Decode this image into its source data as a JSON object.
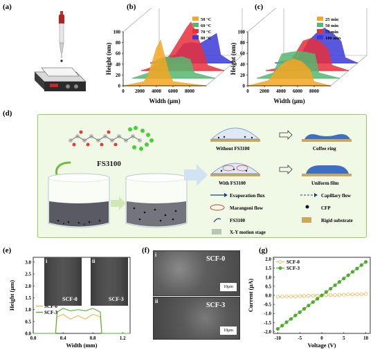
{
  "panels": {
    "a": {
      "label": "(a)"
    },
    "b": {
      "label": "(b)"
    },
    "c": {
      "label": "(c)"
    },
    "d": {
      "label": "(d)"
    },
    "e": {
      "label": "(e)"
    },
    "f": {
      "label": "(f)"
    },
    "g": {
      "label": "(g)"
    }
  },
  "panel_d": {
    "molecule_label": "FS3100",
    "without_label": "Without FS3100",
    "with_label": "With FS3100",
    "coffee_ring_label": "Coffee ring",
    "uniform_film_label": "Uniform film",
    "legend": {
      "evaporation_flux": "Evaporation flux",
      "capillary_flow": "Capillary flow",
      "marangoni_flow": "Marangoni flow",
      "cfp": "CFP",
      "fs3100": "FS3100",
      "rigid_substrate": "Rigid substrate",
      "xy_stage": "X-Y motion stage"
    }
  },
  "panel_e": {
    "img_i": "i",
    "img_ii": "ii",
    "img_i_label": "SCF-0",
    "img_ii_label": "SCF-3"
  },
  "panel_f": {
    "img_i": "i",
    "img_ii": "ii",
    "img_i_label": "SCF-0",
    "img_ii_label": "SCF-3",
    "scale": "10μm"
  },
  "colors": {
    "b_50": "#f5a623",
    "b_60": "#56b870",
    "b_70": "#e8303a",
    "b_80": "#3b3bd9",
    "green_panel_bg": "#f0f9e6",
    "green_panel_border": "#8fcf5a",
    "scf0": "#f5b54a",
    "scf3": "#4caf2a"
  },
  "chart_data": [
    {
      "type": "area",
      "panel": "b",
      "xlabel": "Width (μm)",
      "ylabel": "Height (nm)",
      "xticks": [
        "0",
        "2000",
        "4000",
        "6000",
        "8000"
      ],
      "yticks": [
        "0",
        "20",
        "40",
        "60",
        "80",
        "100"
      ],
      "xlim": [
        0,
        10000
      ],
      "ylim": [
        0,
        100
      ],
      "series": [
        {
          "name": "50 °C",
          "x": [
            2500,
            3000,
            3500,
            4000,
            4500,
            5000,
            5500,
            6000
          ],
          "values": [
            8,
            20,
            45,
            70,
            85,
            55,
            25,
            8
          ]
        },
        {
          "name": "60 °C",
          "x": [
            2000,
            3000,
            4000,
            5000,
            6000,
            7000,
            7500
          ],
          "values": [
            10,
            35,
            40,
            38,
            40,
            35,
            10
          ]
        },
        {
          "name": "70 °C",
          "x": [
            2500,
            3500,
            4500,
            5500,
            6000,
            6500,
            7500,
            8000
          ],
          "values": [
            12,
            30,
            55,
            80,
            90,
            75,
            35,
            10
          ]
        },
        {
          "name": "80 °C",
          "x": [
            3000,
            4000,
            5000,
            6000,
            7000,
            8000,
            8500
          ],
          "values": [
            15,
            35,
            38,
            36,
            45,
            55,
            15
          ]
        }
      ]
    },
    {
      "type": "area",
      "panel": "c",
      "xlabel": "Width (μm)",
      "ylabel": "Height (nm)",
      "xticks": [
        "0",
        "2000",
        "4000",
        "6000",
        "8000"
      ],
      "yticks": [
        "0",
        "20",
        "40",
        "60",
        "80",
        "100"
      ],
      "xlim": [
        0,
        10000
      ],
      "ylim": [
        0,
        100
      ],
      "series": [
        {
          "name": "25 min",
          "x": [
            2500,
            3500,
            4500,
            5500,
            6500,
            7500,
            8000
          ],
          "values": [
            10,
            30,
            45,
            50,
            45,
            30,
            8
          ]
        },
        {
          "name": "50 min",
          "x": [
            2000,
            3000,
            4000,
            5000,
            6000,
            7000,
            7500
          ],
          "values": [
            10,
            45,
            48,
            50,
            48,
            45,
            10
          ]
        },
        {
          "name": "75 min",
          "x": [
            2500,
            3500,
            4500,
            5500,
            6500,
            7500,
            8000
          ],
          "values": [
            8,
            30,
            55,
            60,
            55,
            40,
            10
          ]
        },
        {
          "name": "100 min",
          "x": [
            3000,
            4000,
            5000,
            6000,
            7000,
            8000,
            8500
          ],
          "values": [
            10,
            40,
            55,
            65,
            55,
            40,
            10
          ]
        }
      ]
    },
    {
      "type": "line",
      "panel": "e",
      "xlabel": "Width (mm)",
      "ylabel": "Height (μm)",
      "xticks": [
        "0.0",
        "0.4",
        "0.8",
        "1.2"
      ],
      "yticks": [
        "0.0",
        "0.5",
        "1.0",
        "1.5",
        "2.0",
        "2.5",
        "3.0"
      ],
      "xlim": [
        0,
        1.3
      ],
      "ylim": [
        0,
        3.2
      ],
      "series": [
        {
          "name": "SCF-0",
          "x": [
            0.0,
            0.3,
            0.32,
            0.4,
            0.5,
            0.6,
            0.7,
            0.8,
            0.9,
            0.92,
            1.3
          ],
          "values": [
            0.0,
            0.0,
            0.7,
            0.8,
            0.6,
            0.75,
            0.6,
            0.8,
            0.7,
            0.0,
            0.0
          ]
        },
        {
          "name": "SCF-3",
          "x": [
            0.0,
            0.3,
            0.32,
            0.4,
            0.5,
            0.6,
            0.7,
            0.8,
            0.9,
            0.92,
            1.3
          ],
          "values": [
            0.0,
            0.0,
            0.9,
            1.05,
            0.95,
            1.0,
            0.95,
            1.05,
            0.9,
            0.0,
            0.0
          ]
        }
      ]
    },
    {
      "type": "line",
      "panel": "g",
      "xlabel": "Voltage (V)",
      "ylabel": "Current (μA)",
      "xticks": [
        "-10",
        "-5",
        "0",
        "5",
        "10"
      ],
      "yticks": [
        "-2.0",
        "-1.5",
        "-1.0",
        "-0.5",
        "0.0",
        "0.5",
        "1.0",
        "1.5",
        "2.0"
      ],
      "xlim": [
        -11,
        11
      ],
      "ylim": [
        -2.1,
        2.1
      ],
      "series": [
        {
          "name": "SCF-0",
          "x": [
            -10,
            -9,
            -8,
            -7,
            -6,
            -5,
            -4,
            -3,
            -2,
            -1,
            0,
            1,
            2,
            3,
            4,
            5,
            6,
            7,
            8,
            9,
            10
          ],
          "values": [
            -0.08,
            -0.07,
            -0.06,
            -0.06,
            -0.05,
            -0.04,
            -0.03,
            -0.02,
            -0.02,
            -0.01,
            0.0,
            0.01,
            0.02,
            0.02,
            0.03,
            0.04,
            0.05,
            0.06,
            0.06,
            0.07,
            0.08
          ]
        },
        {
          "name": "SCF-3",
          "x": [
            -10,
            -9,
            -8,
            -7,
            -6,
            -5,
            -4,
            -3,
            -2,
            -1,
            0,
            1,
            2,
            3,
            4,
            5,
            6,
            7,
            8,
            9,
            10
          ],
          "values": [
            -1.85,
            -1.67,
            -1.48,
            -1.3,
            -1.11,
            -0.93,
            -0.74,
            -0.56,
            -0.37,
            -0.19,
            0.0,
            0.19,
            0.37,
            0.56,
            0.74,
            0.93,
            1.11,
            1.3,
            1.48,
            1.67,
            1.85
          ]
        }
      ]
    }
  ]
}
